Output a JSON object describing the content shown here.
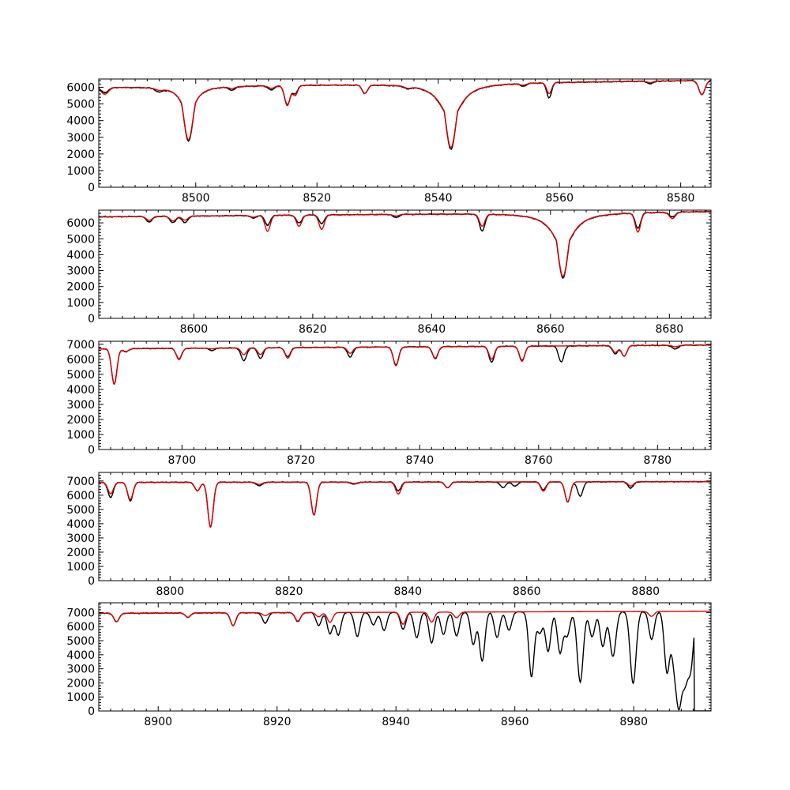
{
  "colors": {
    "observed": "#000000",
    "model": "#dd0000",
    "axes": "#000000",
    "background": "#ffffff"
  },
  "chart_data": [
    {
      "type": "line",
      "xlim": [
        8484,
        8585
      ],
      "ylim": [
        0,
        6500
      ],
      "xticks": [
        8500,
        8520,
        8540,
        8560,
        8580
      ],
      "yticks": [
        0,
        1000,
        2000,
        3000,
        4000,
        5000,
        6000
      ],
      "grid": false,
      "continuum": {
        "start": 6000,
        "end": 6420
      },
      "lines": [
        {
          "x": 8498.8,
          "obs": 3300,
          "model": 3200,
          "w": 0.75,
          "lor": 1.3
        },
        {
          "x": 8542.1,
          "obs": 3950,
          "model": 3850,
          "w": 0.85,
          "lor": 2.1
        },
        {
          "x": 8515.1,
          "obs": 1150,
          "model": 1200,
          "w": 0.45,
          "lor": 0
        },
        {
          "x": 8516.4,
          "obs": 500,
          "model": 600,
          "w": 0.4,
          "lor": 0
        },
        {
          "x": 8527.9,
          "obs": 500,
          "model": 500,
          "w": 0.45,
          "lor": 0
        },
        {
          "x": 8558.3,
          "obs": 900,
          "model": 650,
          "w": 0.4,
          "lor": 0
        },
        {
          "x": 8583.5,
          "obs": 850,
          "model": 850,
          "w": 0.5,
          "lor": 0
        },
        {
          "x": 8485,
          "obs": 300,
          "model": 400,
          "w": 0.6,
          "lor": 0
        },
        {
          "x": 8494,
          "obs": 200,
          "model": 100,
          "w": 0.6,
          "lor": 0
        },
        {
          "x": 8506,
          "obs": 200,
          "model": 100,
          "w": 0.5,
          "lor": 0
        },
        {
          "x": 8512.5,
          "obs": 250,
          "model": 150,
          "w": 0.5,
          "lor": 0
        },
        {
          "x": 8535,
          "obs": 150,
          "model": 100,
          "w": 0.5,
          "lor": 0
        },
        {
          "x": 8554,
          "obs": 150,
          "model": 100,
          "w": 0.5,
          "lor": 0
        },
        {
          "x": 8575,
          "obs": 150,
          "model": 80,
          "w": 0.5,
          "lor": 0
        }
      ]
    },
    {
      "type": "line",
      "xlim": [
        8584,
        8687
      ],
      "ylim": [
        0,
        6800
      ],
      "xticks": [
        8600,
        8620,
        8640,
        8660,
        8680
      ],
      "yticks": [
        0,
        1000,
        2000,
        3000,
        4000,
        5000,
        6000
      ],
      "grid": false,
      "continuum": {
        "start": 6380,
        "end": 6720
      },
      "lines": [
        {
          "x": 8662.1,
          "obs": 4100,
          "model": 4000,
          "w": 0.85,
          "lor": 2.1
        },
        {
          "x": 8612.4,
          "obs": 600,
          "model": 1000,
          "w": 0.45,
          "lor": 0
        },
        {
          "x": 8617.7,
          "obs": 500,
          "model": 700,
          "w": 0.45,
          "lor": 0
        },
        {
          "x": 8621.5,
          "obs": 550,
          "model": 900,
          "w": 0.45,
          "lor": 0
        },
        {
          "x": 8648.5,
          "obs": 1050,
          "model": 750,
          "w": 0.45,
          "lor": 0
        },
        {
          "x": 8674.7,
          "obs": 950,
          "model": 1200,
          "w": 0.45,
          "lor": 0
        },
        {
          "x": 8680.5,
          "obs": 300,
          "model": 400,
          "w": 0.5,
          "lor": 0
        },
        {
          "x": 8592.5,
          "obs": 350,
          "model": 250,
          "w": 0.5,
          "lor": 0
        },
        {
          "x": 8596.5,
          "obs": 400,
          "model": 300,
          "w": 0.5,
          "lor": 0
        },
        {
          "x": 8598.5,
          "obs": 400,
          "model": 250,
          "w": 0.5,
          "lor": 0
        },
        {
          "x": 8610,
          "obs": 150,
          "model": 100,
          "w": 0.5,
          "lor": 0
        },
        {
          "x": 8634,
          "obs": 200,
          "model": 100,
          "w": 0.5,
          "lor": 0
        }
      ]
    },
    {
      "type": "line",
      "xlim": [
        8686,
        8789
      ],
      "ylim": [
        0,
        7200
      ],
      "xticks": [
        8700,
        8720,
        8740,
        8760,
        8780
      ],
      "yticks": [
        0,
        1000,
        2000,
        3000,
        4000,
        5000,
        6000,
        7000
      ],
      "grid": false,
      "continuum": {
        "start": 6700,
        "end": 6950
      },
      "lines": [
        {
          "x": 8688.6,
          "obs": 2350,
          "model": 2350,
          "w": 0.45,
          "lor": 0
        },
        {
          "x": 8699.5,
          "obs": 700,
          "model": 750,
          "w": 0.45,
          "lor": 0
        },
        {
          "x": 8710.4,
          "obs": 850,
          "model": 450,
          "w": 0.45,
          "lor": 0
        },
        {
          "x": 8713.2,
          "obs": 700,
          "model": 450,
          "w": 0.45,
          "lor": 0
        },
        {
          "x": 8717.8,
          "obs": 600,
          "model": 700,
          "w": 0.45,
          "lor": 0
        },
        {
          "x": 8728.3,
          "obs": 650,
          "model": 400,
          "w": 0.45,
          "lor": 0
        },
        {
          "x": 8736.0,
          "obs": 1200,
          "model": 1250,
          "w": 0.45,
          "lor": 0
        },
        {
          "x": 8742.6,
          "obs": 800,
          "model": 750,
          "w": 0.45,
          "lor": 0
        },
        {
          "x": 8752.1,
          "obs": 1050,
          "model": 850,
          "w": 0.45,
          "lor": 0
        },
        {
          "x": 8757.2,
          "obs": 950,
          "model": 1000,
          "w": 0.45,
          "lor": 0
        },
        {
          "x": 8763.8,
          "obs": 1050,
          "model": 0,
          "w": 0.45,
          "lor": 0
        },
        {
          "x": 8772.9,
          "obs": 550,
          "model": 450,
          "w": 0.45,
          "lor": 0
        },
        {
          "x": 8774.4,
          "obs": 700,
          "model": 700,
          "w": 0.45,
          "lor": 0
        },
        {
          "x": 8690.5,
          "obs": 200,
          "model": 200,
          "w": 0.5,
          "lor": 0
        },
        {
          "x": 8705,
          "obs": 150,
          "model": 50,
          "w": 0.5,
          "lor": 0
        },
        {
          "x": 8783,
          "obs": 250,
          "model": 100,
          "w": 0.5,
          "lor": 0
        }
      ]
    },
    {
      "type": "line",
      "xlim": [
        8788,
        8891
      ],
      "ylim": [
        0,
        7600
      ],
      "xticks": [
        8800,
        8820,
        8840,
        8860,
        8880
      ],
      "yticks": [
        0,
        1000,
        2000,
        3000,
        4000,
        5000,
        6000,
        7000
      ],
      "grid": false,
      "continuum": {
        "start": 6900,
        "end": 6950
      },
      "lines": [
        {
          "x": 8790.0,
          "obs": 1050,
          "model": 800,
          "w": 0.45,
          "lor": 0
        },
        {
          "x": 8793.3,
          "obs": 1300,
          "model": 1200,
          "w": 0.45,
          "lor": 0
        },
        {
          "x": 8804.6,
          "obs": 600,
          "model": 600,
          "w": 0.45,
          "lor": 0
        },
        {
          "x": 8806.8,
          "obs": 3150,
          "model": 3150,
          "w": 0.45,
          "lor": 0
        },
        {
          "x": 8824.2,
          "obs": 2300,
          "model": 2300,
          "w": 0.45,
          "lor": 0
        },
        {
          "x": 8838.4,
          "obs": 600,
          "model": 850,
          "w": 0.45,
          "lor": 0
        },
        {
          "x": 8846.7,
          "obs": 400,
          "model": 400,
          "w": 0.45,
          "lor": 0
        },
        {
          "x": 8862.8,
          "obs": 550,
          "model": 650,
          "w": 0.45,
          "lor": 0
        },
        {
          "x": 8866.9,
          "obs": 1400,
          "model": 1400,
          "w": 0.45,
          "lor": 0
        },
        {
          "x": 8869.0,
          "obs": 1000,
          "model": 0,
          "w": 0.45,
          "lor": 0
        },
        {
          "x": 8877.5,
          "obs": 450,
          "model": 300,
          "w": 0.45,
          "lor": 0
        },
        {
          "x": 8856,
          "obs": 400,
          "model": 0,
          "w": 0.45,
          "lor": 0
        },
        {
          "x": 8858,
          "obs": 300,
          "model": 0,
          "w": 0.45,
          "lor": 0
        },
        {
          "x": 8815,
          "obs": 250,
          "model": 150,
          "w": 0.5,
          "lor": 0
        },
        {
          "x": 8831,
          "obs": 150,
          "model": 100,
          "w": 0.5,
          "lor": 0
        }
      ]
    },
    {
      "type": "line",
      "xlim": [
        8890,
        8993
      ],
      "ylim": [
        0,
        7700
      ],
      "xticks": [
        8900,
        8920,
        8940,
        8960,
        8980
      ],
      "yticks": [
        0,
        1000,
        2000,
        3000,
        4000,
        5000,
        6000,
        7000
      ],
      "grid": false,
      "continuum": {
        "start": 6950,
        "end": 7100
      },
      "cutoff": {
        "x": 8990.2,
        "value": 0
      },
      "lines": [
        {
          "x": 8893.0,
          "obs": 600,
          "model": 600,
          "w": 0.45,
          "lor": 0
        },
        {
          "x": 8905.0,
          "obs": 300,
          "model": 300,
          "w": 0.45,
          "lor": 0
        },
        {
          "x": 8912.6,
          "obs": 900,
          "model": 900,
          "w": 0.45,
          "lor": 0
        },
        {
          "x": 8918.0,
          "obs": 750,
          "model": 200,
          "w": 0.45,
          "lor": 0
        },
        {
          "x": 8923.5,
          "obs": 650,
          "model": 600,
          "w": 0.45,
          "lor": 0
        },
        {
          "x": 8927.0,
          "obs": 900,
          "model": 300,
          "w": 0.45,
          "lor": 0
        },
        {
          "x": 8928.9,
          "obs": 1500,
          "model": 700,
          "w": 0.45,
          "lor": 0
        },
        {
          "x": 8930.3,
          "obs": 1600,
          "model": 0,
          "w": 0.45,
          "lor": 0
        },
        {
          "x": 8933.5,
          "obs": 1700,
          "model": 0,
          "w": 0.45,
          "lor": 0
        },
        {
          "x": 8936.2,
          "obs": 900,
          "model": 0,
          "w": 0.45,
          "lor": 0
        },
        {
          "x": 8938.0,
          "obs": 1300,
          "model": 0,
          "w": 0.45,
          "lor": 0
        },
        {
          "x": 8941.2,
          "obs": 1200,
          "model": 850,
          "w": 0.45,
          "lor": 0
        },
        {
          "x": 8943.5,
          "obs": 1800,
          "model": 0,
          "w": 0.45,
          "lor": 0
        },
        {
          "x": 8946.0,
          "obs": 2200,
          "model": 700,
          "w": 0.45,
          "lor": 0
        },
        {
          "x": 8948.0,
          "obs": 1600,
          "model": 0,
          "w": 0.45,
          "lor": 0
        },
        {
          "x": 8950.2,
          "obs": 1700,
          "model": 400,
          "w": 0.45,
          "lor": 0
        },
        {
          "x": 8953.0,
          "obs": 2300,
          "model": 0,
          "w": 0.45,
          "lor": 0
        },
        {
          "x": 8954.5,
          "obs": 3500,
          "model": 0,
          "w": 0.45,
          "lor": 0
        },
        {
          "x": 8957.0,
          "obs": 1800,
          "model": 0,
          "w": 0.45,
          "lor": 0
        },
        {
          "x": 8959.0,
          "obs": 1300,
          "model": 0,
          "w": 0.45,
          "lor": 0
        },
        {
          "x": 8962.8,
          "obs": 4600,
          "model": 0,
          "w": 0.45,
          "lor": 0
        },
        {
          "x": 8964.2,
          "obs": 1500,
          "model": 0,
          "w": 0.45,
          "lor": 0
        },
        {
          "x": 8965.6,
          "obs": 2800,
          "model": 0,
          "w": 0.45,
          "lor": 0
        },
        {
          "x": 8967.6,
          "obs": 2900,
          "model": 0,
          "w": 0.45,
          "lor": 0
        },
        {
          "x": 8968.8,
          "obs": 1700,
          "model": 0,
          "w": 0.45,
          "lor": 0
        },
        {
          "x": 8971.0,
          "obs": 5000,
          "model": 0,
          "w": 0.5,
          "lor": 0
        },
        {
          "x": 8973.0,
          "obs": 1800,
          "model": 0,
          "w": 0.45,
          "lor": 0
        },
        {
          "x": 8974.8,
          "obs": 2500,
          "model": 0,
          "w": 0.45,
          "lor": 0
        },
        {
          "x": 8976.5,
          "obs": 3200,
          "model": 0,
          "w": 0.5,
          "lor": 0
        },
        {
          "x": 8979.9,
          "obs": 5100,
          "model": 0,
          "w": 0.5,
          "lor": 0
        },
        {
          "x": 8983.0,
          "obs": 2000,
          "model": 350,
          "w": 0.45,
          "lor": 0
        },
        {
          "x": 8985.6,
          "obs": 4300,
          "model": 0,
          "w": 0.45,
          "lor": 0
        },
        {
          "x": 8986.8,
          "obs": 3200,
          "model": 0,
          "w": 0.45,
          "lor": 0
        },
        {
          "x": 8987.6,
          "obs": 5700,
          "model": 0,
          "w": 0.45,
          "lor": 0
        },
        {
          "x": 8988.6,
          "obs": 4700,
          "model": 0,
          "w": 0.5,
          "lor": 0
        },
        {
          "x": 8989.6,
          "obs": 3700,
          "model": 0,
          "w": 0.45,
          "lor": 0
        }
      ]
    }
  ]
}
